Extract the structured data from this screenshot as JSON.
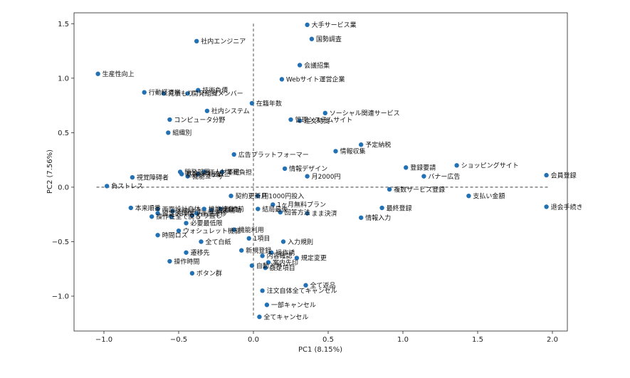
{
  "chart_data": {
    "type": "scatter",
    "xlabel": "PC1 (8.15%)",
    "ylabel": "PC2 (7.56%)",
    "xlim": [
      -1.2,
      2.1
    ],
    "ylim": [
      -1.32,
      1.6
    ],
    "xticks": [
      -1.0,
      -0.5,
      0.0,
      0.5,
      1.0,
      1.5,
      2.0
    ],
    "xtick_labels": [
      "−1.0",
      "−0.5",
      "0.0",
      "0.5",
      "1.0",
      "1.5",
      "2.0"
    ],
    "yticks": [
      -1.0,
      -0.5,
      0.0,
      0.5,
      1.0,
      1.5
    ],
    "ytick_labels": [
      "−1.0",
      "−0.5",
      "0.0",
      "0.5",
      "1.0",
      "1.5"
    ],
    "grid": false,
    "reference_lines": "dashed lines at x=0 and y=0",
    "marker_color": "#2271b5",
    "points": [
      {
        "label": "大手サービス業",
        "x": 0.36,
        "y": 1.49
      },
      {
        "label": "国勢調査",
        "x": 0.39,
        "y": 1.36
      },
      {
        "label": "社内エンジニア",
        "x": -0.38,
        "y": 1.34
      },
      {
        "label": "会議招集",
        "x": 0.31,
        "y": 1.12
      },
      {
        "label": "生産性向上",
        "x": -1.04,
        "y": 1.04
      },
      {
        "label": "Webサイト運営企業",
        "x": 0.19,
        "y": 0.99
      },
      {
        "label": "技術負債",
        "x": -0.37,
        "y": 0.89
      },
      {
        "label": "行動経済学",
        "x": -0.73,
        "y": 0.87
      },
      {
        "label": "開発組織メンバー",
        "x": -0.44,
        "y": 0.86
      },
      {
        "label": "見積もり",
        "x": -0.6,
        "y": 0.86
      },
      {
        "label": "在籍年数",
        "x": -0.01,
        "y": 0.77
      },
      {
        "label": "社内システム",
        "x": -0.31,
        "y": 0.7
      },
      {
        "label": "ソーシャル関連サービス",
        "x": 0.48,
        "y": 0.68
      },
      {
        "label": "コンピュータ分野",
        "x": -0.56,
        "y": 0.62
      },
      {
        "label": "管理システムサイト",
        "x": 0.25,
        "y": 0.62
      },
      {
        "label": "注文時間",
        "x": 0.31,
        "y": 0.61
      },
      {
        "label": "組織別",
        "x": -0.57,
        "y": 0.5
      },
      {
        "label": "予定納税",
        "x": 0.72,
        "y": 0.39
      },
      {
        "label": "情報収集",
        "x": 0.55,
        "y": 0.33
      },
      {
        "label": "広告プラットフォーマー",
        "x": -0.13,
        "y": 0.3
      },
      {
        "label": "ショッピングサイト",
        "x": 1.36,
        "y": 0.2
      },
      {
        "label": "登録要請",
        "x": 1.02,
        "y": 0.18
      },
      {
        "label": "情報デザイン",
        "x": 0.21,
        "y": 0.17
      },
      {
        "label": "開発部署",
        "x": -0.49,
        "y": 0.14
      },
      {
        "label": "IT人材不足",
        "x": -0.33,
        "y": 0.14
      },
      {
        "label": "業務負担",
        "x": -0.21,
        "y": 0.14
      },
      {
        "label": "基幹システム",
        "x": -0.48,
        "y": 0.12
      },
      {
        "label": "利用者",
        "x": -0.37,
        "y": 0.12
      },
      {
        "label": "機能ユーザー",
        "x": -0.44,
        "y": 0.1
      },
      {
        "label": "会員登録",
        "x": 1.96,
        "y": 0.11
      },
      {
        "label": "バナー広告",
        "x": 1.14,
        "y": 0.1
      },
      {
        "label": "月2000円",
        "x": 0.36,
        "y": 0.1
      },
      {
        "label": "視覚障碍者",
        "x": -0.81,
        "y": 0.09
      },
      {
        "label": "負ストレス",
        "x": -0.98,
        "y": 0.01
      },
      {
        "label": "複数サービス登録",
        "x": 0.91,
        "y": -0.02
      },
      {
        "label": "契約更新月",
        "x": -0.15,
        "y": -0.08
      },
      {
        "label": "円1000円投入",
        "x": 0.03,
        "y": -0.08
      },
      {
        "label": "支払い金額",
        "x": 1.44,
        "y": -0.08
      },
      {
        "label": "1ヶ月無料プラン",
        "x": 0.13,
        "y": -0.16
      },
      {
        "label": "結局最後",
        "x": 0.03,
        "y": -0.2
      },
      {
        "label": "本来順番",
        "x": -0.82,
        "y": -0.19
      },
      {
        "label": "画面設計自体",
        "x": -0.64,
        "y": -0.2
      },
      {
        "label": "最終登録",
        "x": 0.86,
        "y": -0.19
      },
      {
        "label": "退会手続き",
        "x": 1.96,
        "y": -0.18
      },
      {
        "label": "継続前",
        "x": -0.22,
        "y": -0.2
      },
      {
        "label": "機能統合",
        "x": -0.33,
        "y": -0.2
      },
      {
        "label": "追加補助",
        "x": -0.28,
        "y": -0.21
      },
      {
        "label": "お客さま",
        "x": -0.54,
        "y": -0.22
      },
      {
        "label": "設定前段階",
        "x": -0.64,
        "y": -0.24
      },
      {
        "label": "画面遷移",
        "x": -0.38,
        "y": -0.24
      },
      {
        "label": "回答方法",
        "x": 0.18,
        "y": -0.23
      },
      {
        "label": "まま決済",
        "x": 0.36,
        "y": -0.24
      },
      {
        "label": "やり直し",
        "x": -0.41,
        "y": -0.26
      },
      {
        "label": "操作性",
        "x": -0.68,
        "y": -0.27
      },
      {
        "label": "全て戻る",
        "x": -0.55,
        "y": -0.27
      },
      {
        "label": "情報入力",
        "x": 0.72,
        "y": -0.28
      },
      {
        "label": "必要最低限",
        "x": -0.45,
        "y": -0.33
      },
      {
        "label": "ウォシュレット機能",
        "x": -0.5,
        "y": -0.4
      },
      {
        "label": "機能利用",
        "x": -0.13,
        "y": -0.39
      },
      {
        "label": "時間ロス",
        "x": -0.64,
        "y": -0.44
      },
      {
        "label": "1項目",
        "x": -0.03,
        "y": -0.47
      },
      {
        "label": "全て白紙",
        "x": -0.35,
        "y": -0.5
      },
      {
        "label": "入力規則",
        "x": 0.2,
        "y": -0.5
      },
      {
        "label": "新規登録",
        "x": -0.08,
        "y": -0.58
      },
      {
        "label": "操作誘",
        "x": 0.12,
        "y": -0.6
      },
      {
        "label": "遷移先",
        "x": -0.45,
        "y": -0.6
      },
      {
        "label": "内容確認",
        "x": 0.06,
        "y": -0.63
      },
      {
        "label": "規定変更",
        "x": 0.29,
        "y": -0.65
      },
      {
        "label": "操作時間",
        "x": -0.56,
        "y": -0.68
      },
      {
        "label": "案内先印",
        "x": 0.1,
        "y": -0.69
      },
      {
        "label": "自動入力",
        "x": -0.01,
        "y": -0.72
      },
      {
        "label": "設定項目",
        "x": 0.08,
        "y": -0.74
      },
      {
        "label": "ボタン群",
        "x": -0.41,
        "y": -0.79
      },
      {
        "label": "全て返品",
        "x": 0.35,
        "y": -0.9
      },
      {
        "label": "注文自体全てキャンセル",
        "x": 0.06,
        "y": -0.95
      },
      {
        "label": "一部キャンセル",
        "x": 0.09,
        "y": -1.08
      },
      {
        "label": "全てキャンセル",
        "x": 0.04,
        "y": -1.19
      }
    ]
  }
}
